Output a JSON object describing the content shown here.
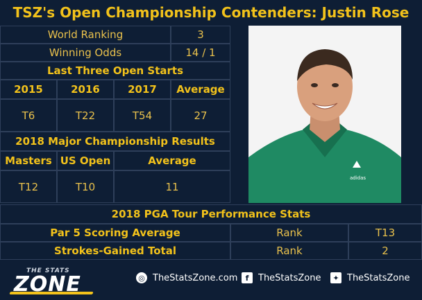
{
  "title": "TSZ's Open Championship Contenders: Justin Rose",
  "summary": [
    {
      "label": "World Ranking",
      "value": "3"
    },
    {
      "label": "Winning Odds",
      "value": "14 / 1"
    }
  ],
  "open_starts": {
    "heading": "Last Three Open Starts",
    "columns": [
      "2015",
      "2016",
      "2017",
      "Average"
    ],
    "values": [
      "T6",
      "T22",
      "T54",
      "27"
    ]
  },
  "majors_2018": {
    "heading": "2018 Major Championship Results",
    "columns": [
      "Masters",
      "US Open",
      "Average"
    ],
    "values": [
      "T12",
      "T10",
      "11"
    ]
  },
  "pga_stats": {
    "heading": "2018 PGA Tour Performance Stats",
    "rows": [
      {
        "label": "Par 5 Scoring Average",
        "rank_label": "Rank",
        "rank": "T13"
      },
      {
        "label": "Strokes-Gained Total",
        "rank_label": "Rank",
        "rank": "2"
      }
    ]
  },
  "footer": {
    "logo_top": "THE STATS",
    "logo_main": "ZONE",
    "web": "TheStatsZone.com",
    "facebook": "TheStatsZone",
    "twitter": "TheStatsZone"
  },
  "photo": {
    "shirt_brand": "adidas"
  },
  "colors": {
    "background": "#0e1e35",
    "accent": "#f2c21b",
    "border": "#2e3f5a"
  }
}
